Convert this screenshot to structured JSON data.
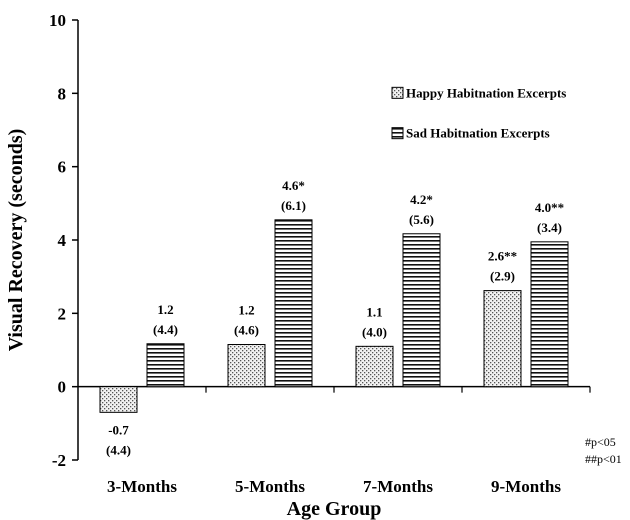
{
  "chart_data": {
    "type": "bar",
    "title": "",
    "xlabel": "Age Group",
    "ylabel": "Visual Recovery (seconds)",
    "ylim": [
      -2,
      10
    ],
    "yticks": [
      -2,
      0,
      2,
      4,
      6,
      8,
      10
    ],
    "grid": false,
    "legend_position": "top-right",
    "categories": [
      "3-Months",
      "5-Months",
      "7-Months",
      "9-Months"
    ],
    "series": [
      {
        "name": "Happy Habitnation Excerpts",
        "pattern": "dotted",
        "values": [
          -0.7,
          1.15,
          1.1,
          2.62
        ],
        "labels": [
          [
            "-0.7",
            "(4.4)"
          ],
          [
            "1.2",
            "(4.6)"
          ],
          [
            "1.1",
            "(4.0)"
          ],
          [
            "2.6**",
            "(2.9)"
          ]
        ]
      },
      {
        "name": "Sad Habitnation Excerpts",
        "pattern": "horizontal-stripes",
        "values": [
          1.17,
          4.55,
          4.17,
          3.95
        ],
        "labels": [
          [
            "1.2",
            "(4.4)"
          ],
          [
            "4.6*",
            "(6.1)"
          ],
          [
            "4.2*",
            "(5.6)"
          ],
          [
            "4.0**",
            "(3.4)"
          ]
        ]
      }
    ],
    "notes": [
      "#p<05",
      "##p<01"
    ]
  }
}
